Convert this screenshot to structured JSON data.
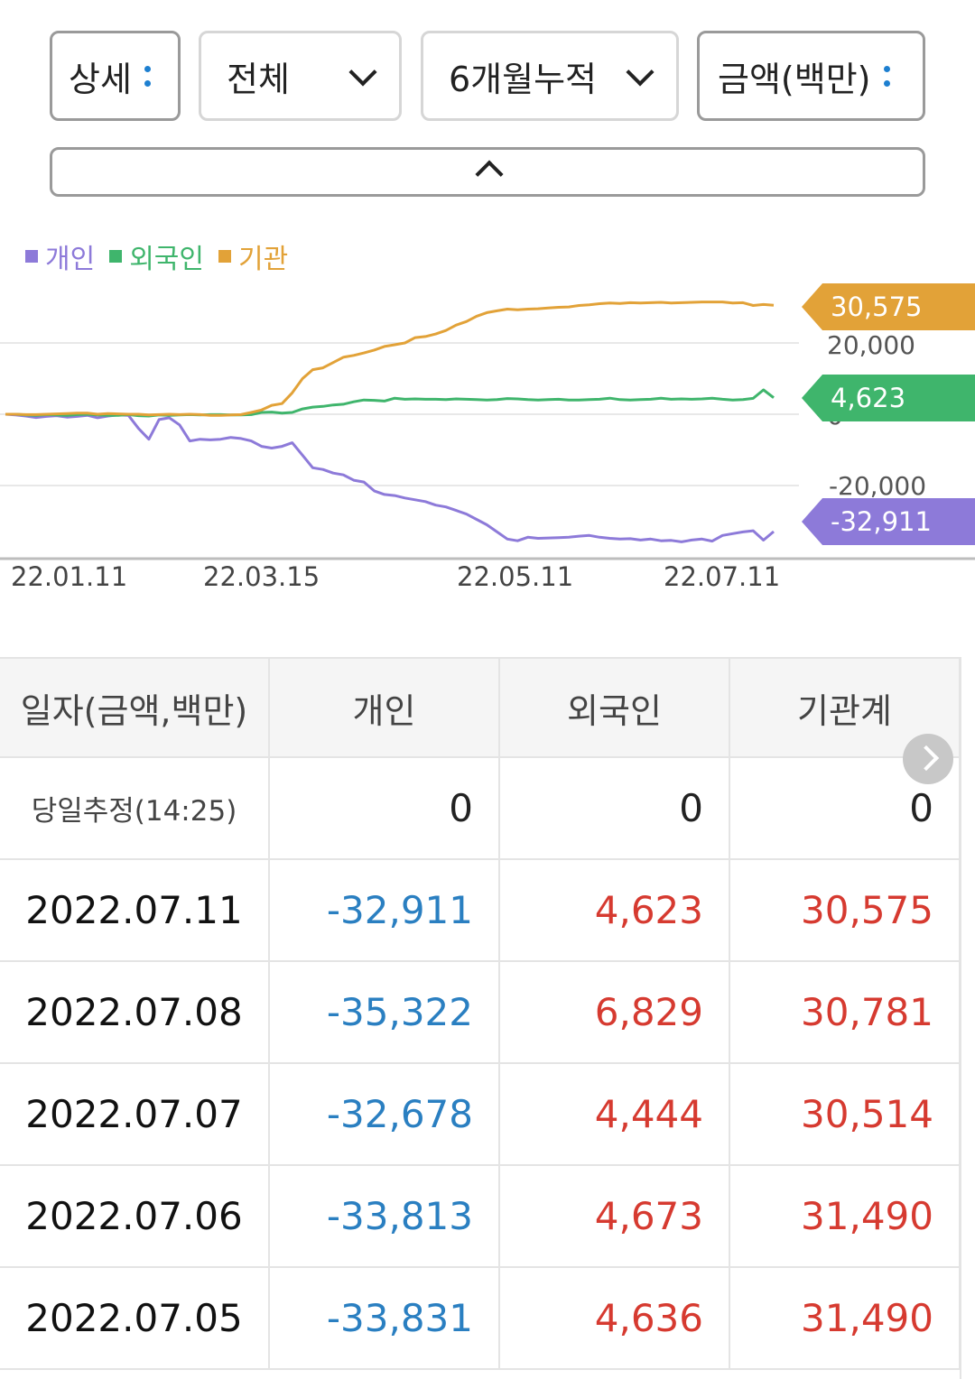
{
  "filters": {
    "detail_label": "상세",
    "scope_label": "전체",
    "period_label": "6개월누적",
    "unit_label": "금액(백만)"
  },
  "legend": [
    {
      "label": "개인",
      "color": "#8d7ad9"
    },
    {
      "label": "외국인",
      "color": "#3fb56c"
    },
    {
      "label": "기관",
      "color": "#e2a238"
    }
  ],
  "chart_data": {
    "type": "line",
    "x_ticks": [
      "22.01.11",
      "22.03.15",
      "22.05.11",
      "22.07.11"
    ],
    "y_ticks": [
      "20,000",
      "0",
      "-20,000"
    ],
    "ylim": [
      -40000,
      36000
    ],
    "grid": true,
    "series": [
      {
        "name": "개인",
        "color": "#8d7ad9",
        "end_label": "-32,911",
        "values": [
          0,
          -200,
          -500,
          -900,
          -600,
          -400,
          -800,
          -600,
          -300,
          -1000,
          -500,
          -200,
          -300,
          -4000,
          -7000,
          -1500,
          -1000,
          -3000,
          -7500,
          -7000,
          -7200,
          -7000,
          -6500,
          -6800,
          -7500,
          -9000,
          -9500,
          -9000,
          -8000,
          -11500,
          -15000,
          -15500,
          -16500,
          -17000,
          -18500,
          -19000,
          -21500,
          -22500,
          -22800,
          -23500,
          -24000,
          -24500,
          -25500,
          -26000,
          -27000,
          -28000,
          -29500,
          -31000,
          -33000,
          -35000,
          -35500,
          -34500,
          -34800,
          -34700,
          -34600,
          -34500,
          -34200,
          -34000,
          -34500,
          -34800,
          -35000,
          -34900,
          -35300,
          -35000,
          -35500,
          -35400,
          -35800,
          -35300,
          -35000,
          -35600,
          -34000,
          -33500,
          -33000,
          -32678,
          -35322,
          -32911
        ]
      },
      {
        "name": "외국인",
        "color": "#3fb56c",
        "end_label": "4,623",
        "values": [
          0,
          0,
          -200,
          -300,
          -100,
          -200,
          -300,
          -100,
          0,
          -200,
          -300,
          -300,
          -100,
          -400,
          -500,
          -200,
          -300,
          -200,
          -100,
          -200,
          -100,
          -100,
          -200,
          -200,
          -100,
          500,
          600,
          300,
          500,
          1500,
          2000,
          2200,
          2600,
          2800,
          3500,
          4000,
          3900,
          3700,
          4500,
          4200,
          4300,
          4200,
          4200,
          4100,
          4300,
          4200,
          4100,
          4000,
          4100,
          4400,
          4300,
          4100,
          4000,
          4100,
          4200,
          4000,
          4000,
          4100,
          4200,
          4500,
          4100,
          4000,
          4100,
          4200,
          4500,
          4200,
          4300,
          4200,
          4300,
          4500,
          4200,
          4000,
          4100,
          4444,
          6829,
          4623
        ]
      },
      {
        "name": "기관",
        "color": "#e2a238",
        "end_label": "30,575",
        "values": [
          0,
          0,
          -100,
          -100,
          0,
          100,
          200,
          300,
          300,
          0,
          200,
          100,
          0,
          0,
          -200,
          -100,
          0,
          -100,
          0,
          -100,
          -300,
          -300,
          -200,
          -100,
          500,
          1200,
          2500,
          3000,
          6000,
          10000,
          12500,
          13000,
          14500,
          16000,
          16500,
          17200,
          18000,
          19000,
          19500,
          20000,
          21500,
          21800,
          22500,
          23500,
          25000,
          26000,
          27500,
          28500,
          29000,
          29500,
          29300,
          29500,
          29600,
          29800,
          30000,
          30100,
          30500,
          30700,
          31000,
          31200,
          31100,
          31300,
          31200,
          31300,
          31400,
          31200,
          31300,
          31400,
          31490,
          31490,
          31490,
          31200,
          31300,
          30514,
          30781,
          30575
        ]
      }
    ]
  },
  "table": {
    "headers": [
      "일자(금액,백만)",
      "개인",
      "외국인",
      "기관계"
    ],
    "estimate_row": {
      "label": "당일추정(14:25)",
      "values": [
        "0",
        "0",
        "0"
      ]
    },
    "rows": [
      {
        "date": "2022.07.11",
        "individual": "-32,911",
        "foreign": "4,623",
        "institution": "30,575"
      },
      {
        "date": "2022.07.08",
        "individual": "-35,322",
        "foreign": "6,829",
        "institution": "30,781"
      },
      {
        "date": "2022.07.07",
        "individual": "-32,678",
        "foreign": "4,444",
        "institution": "30,514"
      },
      {
        "date": "2022.07.06",
        "individual": "-33,813",
        "foreign": "4,673",
        "institution": "31,490"
      },
      {
        "date": "2022.07.05",
        "individual": "-33,831",
        "foreign": "4,636",
        "institution": "31,490"
      }
    ]
  }
}
